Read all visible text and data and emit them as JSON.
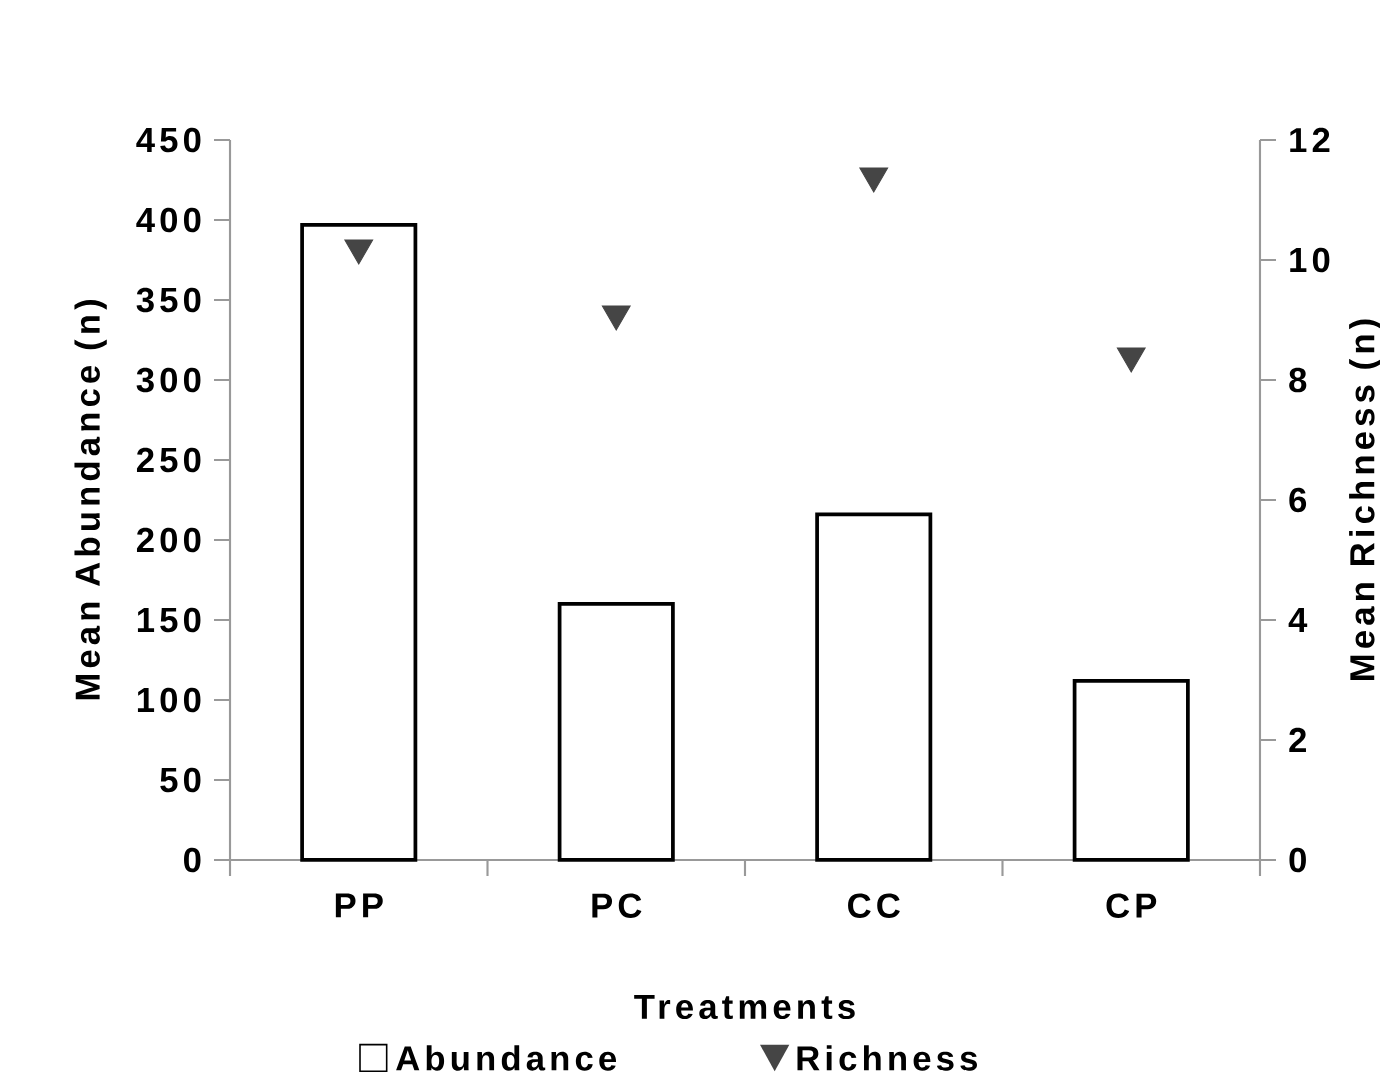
{
  "chart_data": {
    "type": "bar",
    "categories": [
      "PP",
      "PC",
      "CC",
      "CP"
    ],
    "xlabel": "Treatments",
    "ylabel": "Mean Abundance (n)",
    "y2label": "Mean Richness (n)",
    "ylim": [
      0,
      450
    ],
    "yticks": [
      0,
      50,
      100,
      150,
      200,
      250,
      300,
      350,
      400,
      450
    ],
    "y2lim": [
      0,
      12
    ],
    "y2ticks": [
      0,
      2,
      4,
      6,
      8,
      10,
      12
    ],
    "legend": "bottom",
    "series": [
      {
        "name": "Abundance",
        "color": "#ffffff",
        "values": [
          397,
          160,
          216,
          112
        ]
      },
      {
        "name": "Richness",
        "type": "scatter",
        "axis": "y2",
        "marker": "triangle",
        "color": "#454545",
        "values": [
          10.2,
          9.1,
          11.4,
          8.4
        ]
      }
    ]
  }
}
